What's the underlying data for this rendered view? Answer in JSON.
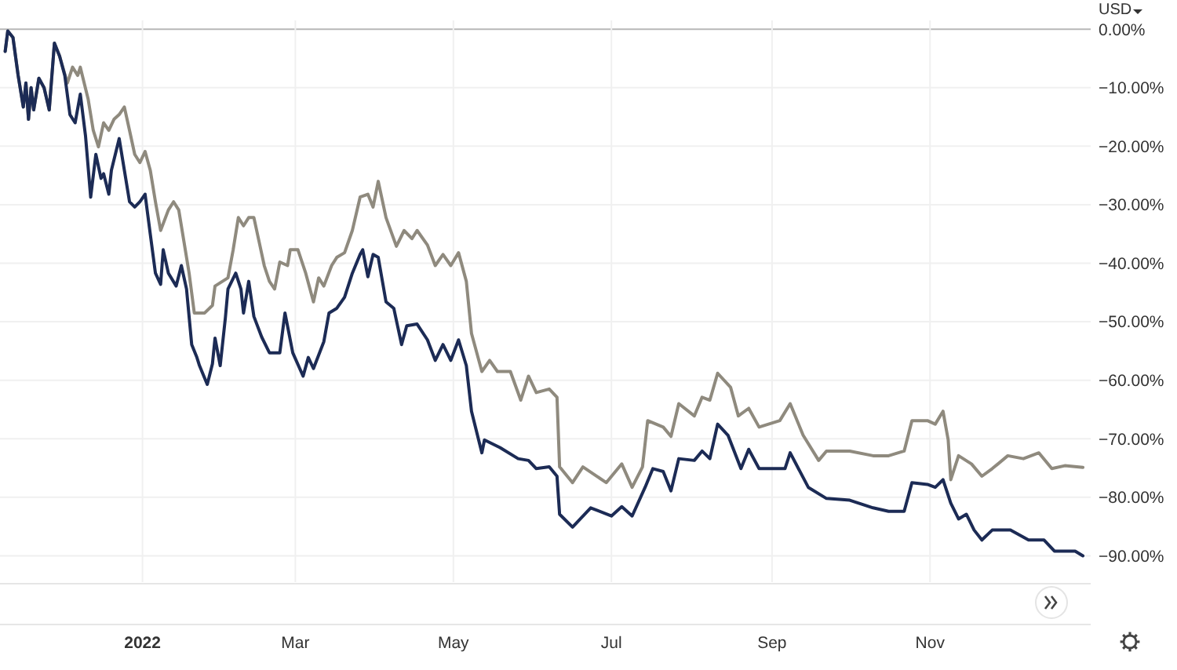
{
  "chart_data": {
    "type": "line",
    "annotations": [
      "USD"
    ],
    "xlim": [
      "2021-11-07",
      "2023-01-02"
    ],
    "xticks": [
      {
        "value": "2022-01-01",
        "label": "2022"
      },
      {
        "value": "2022-03-01",
        "label": "Mar"
      },
      {
        "value": "2022-05-01",
        "label": "May"
      },
      {
        "value": "2022-07-01",
        "label": "Jul"
      },
      {
        "value": "2022-09-01",
        "label": "Sep"
      },
      {
        "value": "2022-11-01",
        "label": "Nov"
      }
    ],
    "ylim": [
      -94.5,
      1.5
    ],
    "yticks": [
      {
        "value": 0,
        "label": "0.00%"
      },
      {
        "value": -10,
        "label": "−10.00%"
      },
      {
        "value": -20,
        "label": "−20.00%"
      },
      {
        "value": -30,
        "label": "−30.00%"
      },
      {
        "value": -40,
        "label": "−40.00%"
      },
      {
        "value": -50,
        "label": "−50.00%"
      },
      {
        "value": -60,
        "label": "−60.00%"
      },
      {
        "value": -70,
        "label": "−70.00%"
      },
      {
        "value": -80,
        "label": "−80.00%"
      },
      {
        "value": -90,
        "label": "−90.00%"
      }
    ],
    "grid": true,
    "marker": "none",
    "line_style": "solid",
    "series": [
      {
        "color": "#8f8a7e",
        "x": [
          "2021-11-09",
          "2021-11-10",
          "2021-11-12",
          "2021-11-14",
          "2021-11-16",
          "2021-11-17",
          "2021-11-18",
          "2021-11-19",
          "2021-11-20",
          "2021-11-22",
          "2021-11-24",
          "2021-11-26",
          "2021-11-28",
          "2021-11-30",
          "2021-12-03",
          "2021-12-05",
          "2021-12-07",
          "2021-12-08",
          "2021-12-11",
          "2021-12-13",
          "2021-12-15",
          "2021-12-17",
          "2021-12-19",
          "2021-12-21",
          "2021-12-23",
          "2021-12-25",
          "2021-12-27",
          "2021-12-29",
          "2021-12-31",
          "2022-01-02",
          "2022-01-04",
          "2022-01-06",
          "2022-01-08",
          "2022-01-11",
          "2022-01-13",
          "2022-01-15",
          "2022-01-17",
          "2022-01-19",
          "2022-01-21",
          "2022-01-25",
          "2022-01-28",
          "2022-01-29",
          "2022-02-03",
          "2022-02-05",
          "2022-02-07",
          "2022-02-09",
          "2022-02-11",
          "2022-02-13",
          "2022-02-15",
          "2022-02-17",
          "2022-02-19",
          "2022-02-21",
          "2022-02-23",
          "2022-02-26",
          "2022-02-27",
          "2022-03-02",
          "2022-03-05",
          "2022-03-08",
          "2022-03-10",
          "2022-03-12",
          "2022-03-15",
          "2022-03-17",
          "2022-03-20",
          "2022-03-23",
          "2022-03-26",
          "2022-03-29",
          "2022-03-31",
          "2022-04-02",
          "2022-04-05",
          "2022-04-09",
          "2022-04-12",
          "2022-04-15",
          "2022-04-17",
          "2022-04-21",
          "2022-04-24",
          "2022-04-27",
          "2022-04-30",
          "2022-05-03",
          "2022-05-06",
          "2022-05-08",
          "2022-05-12",
          "2022-05-15",
          "2022-05-18",
          "2022-05-23",
          "2022-05-27",
          "2022-05-30",
          "2022-06-02",
          "2022-06-07",
          "2022-06-10",
          "2022-06-11",
          "2022-06-16",
          "2022-06-20",
          "2022-06-29",
          "2022-07-05",
          "2022-07-09",
          "2022-07-13",
          "2022-07-15",
          "2022-07-21",
          "2022-07-24",
          "2022-07-27",
          "2022-08-02",
          "2022-08-05",
          "2022-08-08",
          "2022-08-11",
          "2022-08-16",
          "2022-08-19",
          "2022-08-23",
          "2022-08-27",
          "2022-09-04",
          "2022-09-08",
          "2022-09-13",
          "2022-09-19",
          "2022-09-22",
          "2022-10-01",
          "2022-10-10",
          "2022-10-16",
          "2022-10-22",
          "2022-10-25",
          "2022-10-31",
          "2022-11-03",
          "2022-11-06",
          "2022-11-08",
          "2022-11-09",
          "2022-11-12",
          "2022-11-17",
          "2022-11-21",
          "2022-11-25",
          "2022-12-01",
          "2022-12-07",
          "2022-12-13",
          "2022-12-18",
          "2022-12-23",
          "2022-12-30"
        ],
        "values": [
          -3.8,
          -0.3,
          -1.4,
          -7.9,
          -13.3,
          -9.2,
          -15.4,
          -10.0,
          -13.8,
          -8.4,
          -10.0,
          -13.8,
          -2.4,
          -4.6,
          -9.2,
          -6.5,
          -7.9,
          -6.5,
          -11.9,
          -17.3,
          -20.1,
          -16.0,
          -17.3,
          -15.4,
          -14.6,
          -13.3,
          -17.3,
          -21.4,
          -22.8,
          -20.9,
          -24.1,
          -29.5,
          -34.4,
          -30.9,
          -29.5,
          -30.9,
          -36.3,
          -41.7,
          -48.5,
          -48.5,
          -47.2,
          -43.9,
          -42.5,
          -37.7,
          -32.2,
          -33.6,
          -32.2,
          -32.2,
          -36.3,
          -40.4,
          -43.1,
          -44.4,
          -39.8,
          -40.4,
          -37.7,
          -37.7,
          -41.7,
          -46.6,
          -42.5,
          -43.9,
          -40.4,
          -39.0,
          -38.2,
          -34.4,
          -28.7,
          -28.2,
          -30.4,
          -26.0,
          -32.2,
          -37.1,
          -34.4,
          -35.8,
          -34.4,
          -36.9,
          -40.4,
          -38.5,
          -40.4,
          -38.2,
          -43.1,
          -52.0,
          -58.5,
          -56.6,
          -58.5,
          -58.5,
          -63.4,
          -59.3,
          -62.1,
          -61.5,
          -62.9,
          -74.8,
          -77.5,
          -74.8,
          -77.5,
          -74.3,
          -78.3,
          -74.8,
          -66.9,
          -68.0,
          -69.6,
          -64.0,
          -66.1,
          -62.9,
          -63.4,
          -58.8,
          -61.2,
          -66.1,
          -64.8,
          -68.0,
          -66.9,
          -64.0,
          -69.4,
          -73.7,
          -72.1,
          -72.1,
          -72.9,
          -72.9,
          -72.1,
          -66.9,
          -66.9,
          -67.5,
          -65.3,
          -70.2,
          -77.0,
          -72.9,
          -74.3,
          -76.4,
          -75.1,
          -72.9,
          -73.4,
          -72.4,
          -75.1,
          -74.6,
          -74.9
        ]
      },
      {
        "color": "#1c2b55",
        "x": [
          "2021-11-09",
          "2021-11-10",
          "2021-11-12",
          "2021-11-14",
          "2021-11-16",
          "2021-11-17",
          "2021-11-18",
          "2021-11-19",
          "2021-11-20",
          "2021-11-22",
          "2021-11-24",
          "2021-11-26",
          "2021-11-28",
          "2021-11-30",
          "2021-12-02",
          "2021-12-04",
          "2021-12-06",
          "2021-12-08",
          "2021-12-10",
          "2021-12-12",
          "2021-12-14",
          "2021-12-16",
          "2021-12-17",
          "2021-12-19",
          "2021-12-20",
          "2021-12-23",
          "2021-12-25",
          "2021-12-27",
          "2021-12-29",
          "2021-12-31",
          "2022-01-02",
          "2022-01-04",
          "2022-01-06",
          "2022-01-08",
          "2022-01-09",
          "2022-01-11",
          "2022-01-14",
          "2022-01-16",
          "2022-01-18",
          "2022-01-20",
          "2022-01-22",
          "2022-01-23",
          "2022-01-26",
          "2022-01-28",
          "2022-01-29",
          "2022-01-31",
          "2022-02-02",
          "2022-02-03",
          "2022-02-06",
          "2022-02-08",
          "2022-02-09",
          "2022-02-11",
          "2022-02-13",
          "2022-02-16",
          "2022-02-19",
          "2022-02-23",
          "2022-02-25",
          "2022-02-28",
          "2022-03-04",
          "2022-03-06",
          "2022-03-08",
          "2022-03-12",
          "2022-03-14",
          "2022-03-17",
          "2022-03-20",
          "2022-03-23",
          "2022-03-26",
          "2022-03-27",
          "2022-03-29",
          "2022-03-31",
          "2022-04-02",
          "2022-04-05",
          "2022-04-08",
          "2022-04-11",
          "2022-04-13",
          "2022-04-17",
          "2022-04-21",
          "2022-04-24",
          "2022-04-27",
          "2022-04-30",
          "2022-05-03",
          "2022-05-06",
          "2022-05-08",
          "2022-05-12",
          "2022-05-13",
          "2022-05-19",
          "2022-05-26",
          "2022-05-30",
          "2022-06-02",
          "2022-06-07",
          "2022-06-10",
          "2022-06-11",
          "2022-06-16",
          "2022-06-23",
          "2022-07-01",
          "2022-07-05",
          "2022-07-09",
          "2022-07-14",
          "2022-07-17",
          "2022-07-21",
          "2022-07-24",
          "2022-07-27",
          "2022-08-02",
          "2022-08-05",
          "2022-08-08",
          "2022-08-11",
          "2022-08-15",
          "2022-08-20",
          "2022-08-23",
          "2022-08-27",
          "2022-09-06",
          "2022-09-08",
          "2022-09-15",
          "2022-09-22",
          "2022-10-01",
          "2022-10-10",
          "2022-10-16",
          "2022-10-22",
          "2022-10-25",
          "2022-10-31",
          "2022-11-03",
          "2022-11-06",
          "2022-11-09",
          "2022-11-12",
          "2022-11-15",
          "2022-11-18",
          "2022-11-21",
          "2022-11-25",
          "2022-12-02",
          "2022-12-09",
          "2022-12-15",
          "2022-12-19",
          "2022-12-27",
          "2022-12-30"
        ],
        "values": [
          -3.8,
          -0.3,
          -1.4,
          -7.9,
          -13.3,
          -9.2,
          -15.4,
          -10.0,
          -13.8,
          -8.4,
          -10.0,
          -13.8,
          -2.4,
          -4.6,
          -7.9,
          -14.6,
          -16.0,
          -11.1,
          -18.2,
          -28.7,
          -21.4,
          -25.5,
          -24.7,
          -28.2,
          -24.1,
          -18.7,
          -24.1,
          -29.5,
          -30.4,
          -29.5,
          -28.2,
          -35.0,
          -41.7,
          -43.6,
          -37.7,
          -41.7,
          -43.9,
          -40.4,
          -44.4,
          -53.9,
          -56.1,
          -57.5,
          -60.7,
          -57.2,
          -52.8,
          -57.5,
          -49.3,
          -44.4,
          -41.7,
          -44.4,
          -48.5,
          -43.1,
          -49.1,
          -52.6,
          -55.3,
          -55.3,
          -48.5,
          -55.3,
          -59.3,
          -56.1,
          -58.0,
          -53.4,
          -48.5,
          -47.7,
          -45.8,
          -41.7,
          -38.5,
          -37.7,
          -42.3,
          -38.5,
          -39.0,
          -46.6,
          -47.7,
          -53.9,
          -50.7,
          -50.4,
          -53.1,
          -56.6,
          -53.9,
          -56.6,
          -53.1,
          -57.5,
          -65.3,
          -72.4,
          -70.2,
          -71.5,
          -73.4,
          -73.7,
          -75.1,
          -74.8,
          -76.4,
          -82.9,
          -85.1,
          -81.8,
          -83.2,
          -81.6,
          -83.2,
          -78.3,
          -75.1,
          -75.6,
          -78.9,
          -73.4,
          -73.7,
          -72.1,
          -73.4,
          -67.5,
          -69.4,
          -75.1,
          -71.8,
          -75.1,
          -75.1,
          -72.4,
          -78.3,
          -80.2,
          -80.5,
          -81.8,
          -82.4,
          -82.4,
          -77.5,
          -77.8,
          -78.3,
          -77.0,
          -81.0,
          -83.7,
          -82.9,
          -85.6,
          -87.3,
          -85.6,
          -85.6,
          -87.3,
          -87.3,
          -89.2,
          -89.2,
          -90.0
        ]
      }
    ]
  }
}
